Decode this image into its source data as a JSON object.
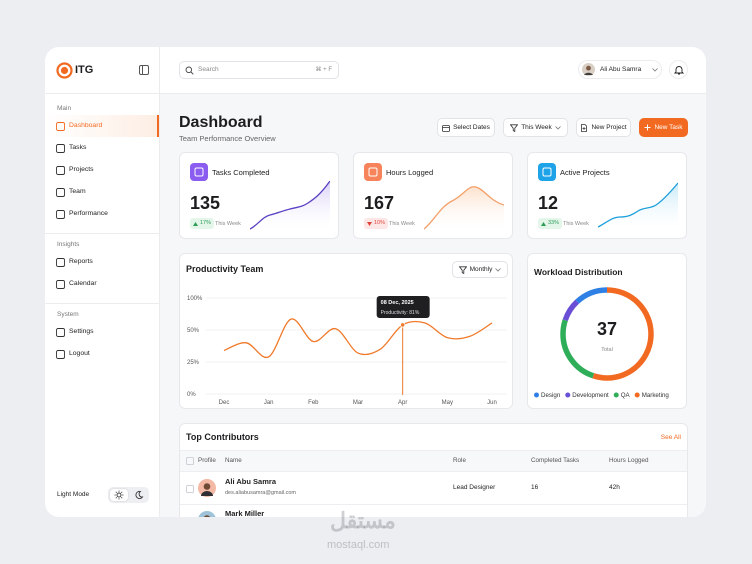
{
  "sidebar": {
    "brand": "ITG",
    "sections": [
      {
        "label": "Main",
        "items": [
          "Dashboard",
          "Tasks",
          "Projects",
          "Team",
          "Performance"
        ]
      },
      {
        "label": "Insights",
        "items": [
          "Reports",
          "Calendar"
        ]
      },
      {
        "label": "System",
        "items": [
          "Settings",
          "Logout"
        ]
      }
    ],
    "mode_label": "Light Mode"
  },
  "topbar": {
    "search_placeholder": "Search",
    "shortcut": "⌘ + F",
    "user": "Ali Abu Samra"
  },
  "header": {
    "title": "Dashboard",
    "subtitle": "Team Performance Overview",
    "buttons": [
      "Select Dates",
      "This Week",
      "New Project",
      "New Task"
    ]
  },
  "stats": [
    {
      "title": "Tasks Completed",
      "value": 135,
      "change": "17%",
      "trend": "up",
      "period": "This Week"
    },
    {
      "title": "Hours Logged",
      "value": 167,
      "change": "10%",
      "trend": "down",
      "period": "This Week"
    },
    {
      "title": "Active Projects",
      "value": 12,
      "change": "33%",
      "trend": "up",
      "period": "This Week"
    }
  ],
  "productivity": {
    "type": "line",
    "title": "Productivity Team",
    "filter": "Monthly",
    "categories": [
      "Dec",
      null,
      "Jan",
      null,
      "Feb",
      null,
      "Mar",
      null,
      "Apr",
      null,
      "May",
      null,
      "Jun"
    ],
    "values": [
      34,
      40,
      29,
      67,
      41,
      52,
      32,
      35,
      58,
      61,
      44,
      45,
      61
    ],
    "color": "#f07a2b",
    "ylim": [
      0,
      100
    ],
    "yticks": [
      {
        "value": 0,
        "label": "0%"
      },
      {
        "value": 25,
        "label": "25%"
      },
      {
        "value": 50,
        "label": "50%"
      },
      {
        "value": 100,
        "label": "100%"
      }
    ],
    "grid": true,
    "tooltip": {
      "date": "08 Dec, 2025",
      "text": "Productivity: 81%"
    }
  },
  "workload": {
    "type": "donut",
    "title": "Workload Distribution",
    "total": 37,
    "total_label": "Total",
    "series": [
      {
        "name": "Design",
        "color": "#2f80e4",
        "value": 12
      },
      {
        "name": "Development",
        "color": "#6a4fd6",
        "value": 8
      },
      {
        "name": "QA",
        "color": "#2fae5a",
        "value": 25
      },
      {
        "name": "Marketing",
        "color": "#f26a21",
        "value": 55
      }
    ]
  },
  "contributors": {
    "title": "Top Contributors",
    "link": "See All",
    "columns": [
      "Profile",
      "Name",
      "Role",
      "Completed Tasks",
      "Hours Logged"
    ],
    "rows": [
      {
        "name": "Ali Abu Samra",
        "email": "des.aliabusamra@gmail.com",
        "role": "Lead Designer",
        "tasks": 16,
        "hours": "42h"
      },
      {
        "name": "Mark Miller"
      }
    ]
  },
  "watermark": {
    "arabic": "مستقل",
    "latin": "mostaql.com"
  }
}
